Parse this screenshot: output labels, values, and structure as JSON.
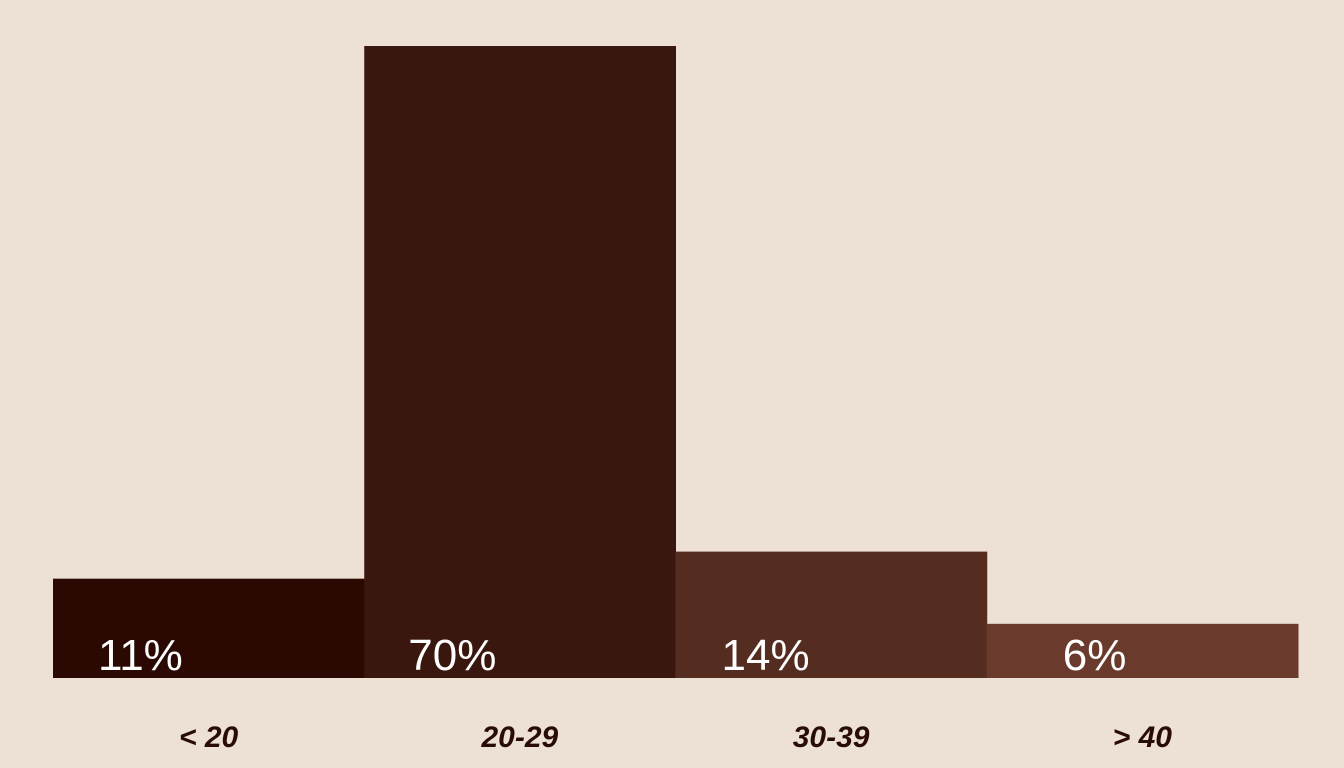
{
  "chart_data": {
    "type": "bar",
    "categories": [
      "< 20",
      "20-29",
      "30-39",
      "> 40"
    ],
    "values": [
      11,
      70,
      14,
      6
    ],
    "value_labels": [
      "11%",
      "70%",
      "14%",
      "6%"
    ],
    "unit": "%",
    "ylim": [
      0,
      70
    ],
    "grid": false,
    "legend": "none",
    "colors": [
      "#2b0802",
      "#3a170e",
      "#552c20",
      "#6a3a2c"
    ],
    "background": "#ede1d6",
    "label_color": "#ffffff",
    "category_label_color": "#2a0c06"
  }
}
